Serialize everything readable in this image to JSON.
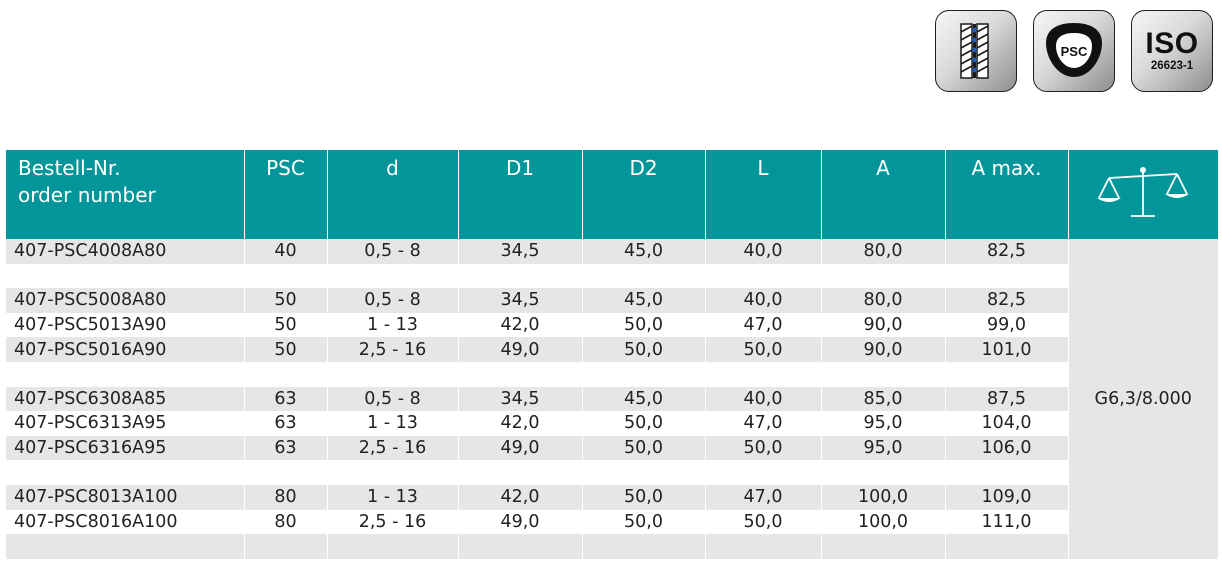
{
  "icons": [
    {
      "name": "coolant-channel-icon"
    },
    {
      "name": "psc-interface-icon",
      "label": "PSC"
    },
    {
      "name": "iso-standard-icon",
      "label": "ISO",
      "sublabel": "26623-1"
    }
  ],
  "table": {
    "header": {
      "order_line1": "Bestell-Nr.",
      "order_line2": "order number",
      "psc": "PSC",
      "d": "d",
      "d1": "D1",
      "d2": "D2",
      "l": "L",
      "a": "A",
      "amax": "A max.",
      "balance_icon": "balance-scale-icon"
    },
    "balance_value": "G6,3/8.000",
    "rows": [
      {
        "order": "407-PSC4008A80",
        "psc": "40",
        "d": "0,5 - 8",
        "d1": "34,5",
        "d2": "45,0",
        "l": "40,0",
        "a": "80,0",
        "amax": "82,5"
      },
      {
        "order": "",
        "psc": "",
        "d": "",
        "d1": "",
        "d2": "",
        "l": "",
        "a": "",
        "amax": ""
      },
      {
        "order": "407-PSC5008A80",
        "psc": "50",
        "d": "0,5 - 8",
        "d1": "34,5",
        "d2": "45,0",
        "l": "40,0",
        "a": "80,0",
        "amax": "82,5"
      },
      {
        "order": "407-PSC5013A90",
        "psc": "50",
        "d": "1 - 13",
        "d1": "42,0",
        "d2": "50,0",
        "l": "47,0",
        "a": "90,0",
        "amax": "99,0"
      },
      {
        "order": "407-PSC5016A90",
        "psc": "50",
        "d": "2,5 - 16",
        "d1": "49,0",
        "d2": "50,0",
        "l": "50,0",
        "a": "90,0",
        "amax": "101,0"
      },
      {
        "order": "",
        "psc": "",
        "d": "",
        "d1": "",
        "d2": "",
        "l": "",
        "a": "",
        "amax": ""
      },
      {
        "order": "407-PSC6308A85",
        "psc": "63",
        "d": "0,5 - 8",
        "d1": "34,5",
        "d2": "45,0",
        "l": "40,0",
        "a": "85,0",
        "amax": "87,5"
      },
      {
        "order": "407-PSC6313A95",
        "psc": "63",
        "d": "1 - 13",
        "d1": "42,0",
        "d2": "50,0",
        "l": "47,0",
        "a": "95,0",
        "amax": "104,0"
      },
      {
        "order": "407-PSC6316A95",
        "psc": "63",
        "d": "2,5 - 16",
        "d1": "49,0",
        "d2": "50,0",
        "l": "50,0",
        "a": "95,0",
        "amax": "106,0"
      },
      {
        "order": "",
        "psc": "",
        "d": "",
        "d1": "",
        "d2": "",
        "l": "",
        "a": "",
        "amax": ""
      },
      {
        "order": "407-PSC8013A100",
        "psc": "80",
        "d": "1 - 13",
        "d1": "42,0",
        "d2": "50,0",
        "l": "47,0",
        "a": "100,0",
        "amax": "109,0"
      },
      {
        "order": "407-PSC8016A100",
        "psc": "80",
        "d": "2,5 - 16",
        "d1": "49,0",
        "d2": "50,0",
        "l": "50,0",
        "a": "100,0",
        "amax": "111,0"
      },
      {
        "order": "",
        "psc": "",
        "d": "",
        "d1": "",
        "d2": "",
        "l": "",
        "a": "",
        "amax": ""
      }
    ]
  }
}
